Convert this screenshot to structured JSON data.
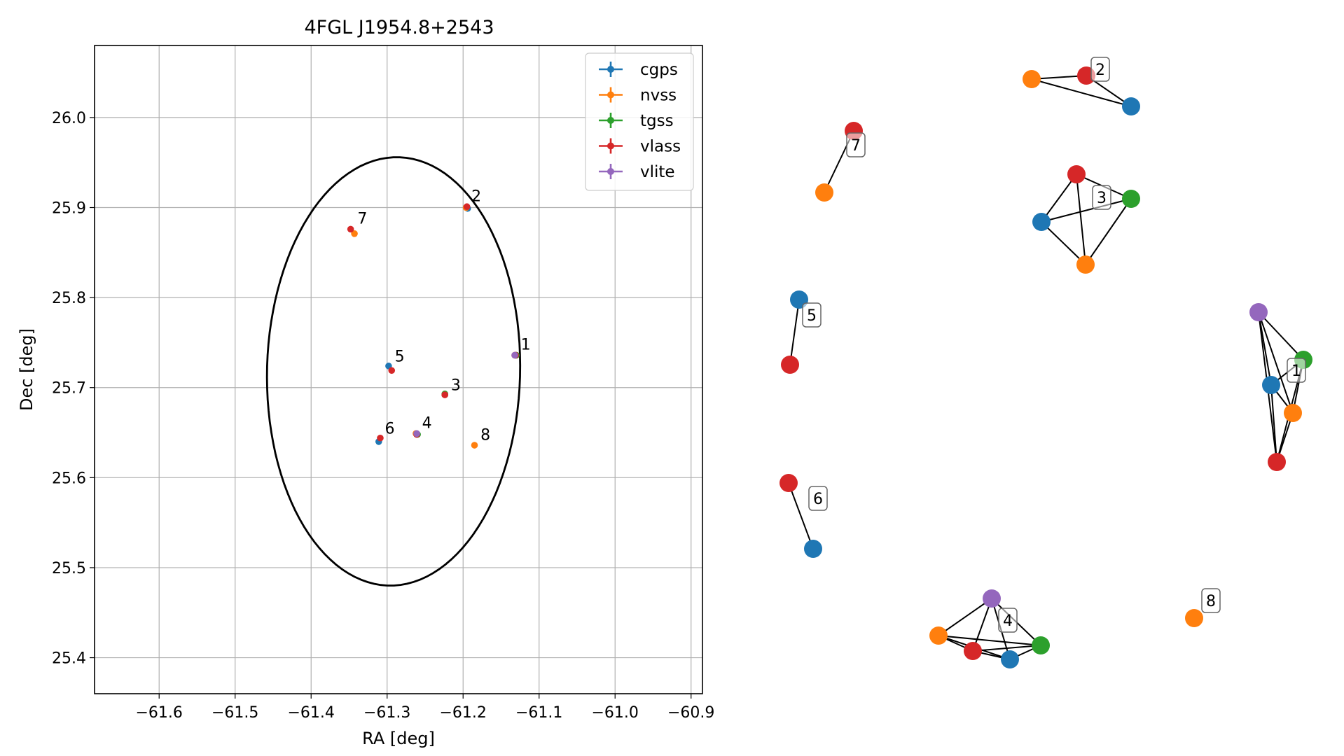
{
  "chart_data": [
    {
      "type": "scatter",
      "title": "4FGL J1954.8+2543",
      "xlabel": "RA [deg]",
      "ylabel": "Dec [deg]",
      "xlim": [
        -61.685,
        -60.885
      ],
      "ylim": [
        25.36,
        26.08
      ],
      "xticks": [
        -61.6,
        -61.5,
        -61.4,
        -61.3,
        -61.2,
        -61.1,
        -61.0,
        -60.9
      ],
      "xtick_labels": [
        "−61.6",
        "−61.5",
        "−61.4",
        "−61.3",
        "−61.2",
        "−61.1",
        "−61.0",
        "−60.9"
      ],
      "yticks": [
        25.4,
        25.5,
        25.6,
        25.7,
        25.8,
        25.9,
        26.0
      ],
      "ytick_labels": [
        "25.4",
        "25.5",
        "25.6",
        "25.7",
        "25.8",
        "25.9",
        "26.0"
      ],
      "grid": true,
      "legend_position": "top-right",
      "ellipse": {
        "center": [
          -61.2915,
          25.718
        ],
        "semi_axis_ra": 0.1665,
        "semi_axis_dec": 0.238,
        "angle_deg": -2
      },
      "series": [
        {
          "name": "cgps",
          "color": "#1f77b4",
          "points": [
            [
              -61.131,
              25.736
            ],
            [
              -61.194,
              25.899
            ],
            [
              -61.224,
              25.692
            ],
            [
              -61.261,
              25.648
            ],
            [
              -61.298,
              25.724
            ],
            [
              -61.311,
              25.64
            ]
          ]
        },
        {
          "name": "nvss",
          "color": "#ff7f0e",
          "points": [
            [
              -61.132,
              25.736
            ],
            [
              -61.196,
              25.9
            ],
            [
              -61.224,
              25.692
            ],
            [
              -61.262,
              25.649
            ],
            [
              -61.343,
              25.871
            ],
            [
              -61.185,
              25.636
            ]
          ]
        },
        {
          "name": "tgss",
          "color": "#2ca02c",
          "points": [
            [
              -61.13,
              25.736
            ],
            [
              -61.224,
              25.693
            ],
            [
              -61.26,
              25.648
            ]
          ]
        },
        {
          "name": "vlass",
          "color": "#d62728",
          "points": [
            [
              -61.131,
              25.736
            ],
            [
              -61.195,
              25.901
            ],
            [
              -61.224,
              25.692
            ],
            [
              -61.261,
              25.648
            ],
            [
              -61.294,
              25.719
            ],
            [
              -61.309,
              25.644
            ],
            [
              -61.348,
              25.876
            ]
          ]
        },
        {
          "name": "vlite",
          "color": "#9467bd",
          "points": [
            [
              -61.132,
              25.736
            ],
            [
              -61.261,
              25.649
            ]
          ]
        }
      ],
      "group_labels": [
        {
          "text": "1",
          "at": [
            -61.124,
            25.742
          ]
        },
        {
          "text": "2",
          "at": [
            -61.189,
            25.907
          ]
        },
        {
          "text": "3",
          "at": [
            -61.216,
            25.697
          ]
        },
        {
          "text": "4",
          "at": [
            -61.254,
            25.655
          ]
        },
        {
          "text": "5",
          "at": [
            -61.29,
            25.729
          ]
        },
        {
          "text": "6",
          "at": [
            -61.303,
            25.649
          ]
        },
        {
          "text": "7",
          "at": [
            -61.339,
            25.882
          ]
        },
        {
          "text": "8",
          "at": [
            -61.177,
            25.642
          ]
        }
      ]
    },
    {
      "type": "network",
      "colors": {
        "cgps": "#1f77b4",
        "nvss": "#ff7f0e",
        "tgss": "#2ca02c",
        "vlass": "#d62728",
        "vlite": "#9467bd"
      },
      "groups": [
        {
          "label": "1",
          "nodes": [
            {
              "id": "a",
              "survey": "vlite"
            },
            {
              "id": "b",
              "survey": "tgss"
            },
            {
              "id": "c",
              "survey": "cgps"
            },
            {
              "id": "d",
              "survey": "nvss"
            },
            {
              "id": "e",
              "survey": "vlass"
            }
          ],
          "edges": [
            [
              "a",
              "b"
            ],
            [
              "a",
              "c"
            ],
            [
              "a",
              "d"
            ],
            [
              "a",
              "e"
            ],
            [
              "b",
              "c"
            ],
            [
              "b",
              "d"
            ],
            [
              "b",
              "e"
            ],
            [
              "c",
              "d"
            ],
            [
              "c",
              "e"
            ],
            [
              "d",
              "e"
            ]
          ]
        },
        {
          "label": "2",
          "nodes": [
            {
              "id": "a",
              "survey": "nvss"
            },
            {
              "id": "b",
              "survey": "vlass"
            },
            {
              "id": "c",
              "survey": "cgps"
            }
          ],
          "edges": [
            [
              "a",
              "b"
            ],
            [
              "a",
              "c"
            ],
            [
              "b",
              "c"
            ]
          ]
        },
        {
          "label": "3",
          "nodes": [
            {
              "id": "a",
              "survey": "vlass"
            },
            {
              "id": "b",
              "survey": "tgss"
            },
            {
              "id": "c",
              "survey": "cgps"
            },
            {
              "id": "d",
              "survey": "nvss"
            }
          ],
          "edges": [
            [
              "a",
              "b"
            ],
            [
              "a",
              "c"
            ],
            [
              "a",
              "d"
            ],
            [
              "b",
              "c"
            ],
            [
              "b",
              "d"
            ],
            [
              "c",
              "d"
            ]
          ]
        },
        {
          "label": "4",
          "nodes": [
            {
              "id": "a",
              "survey": "vlite"
            },
            {
              "id": "b",
              "survey": "nvss"
            },
            {
              "id": "c",
              "survey": "vlass"
            },
            {
              "id": "d",
              "survey": "cgps"
            },
            {
              "id": "e",
              "survey": "tgss"
            }
          ],
          "edges": [
            [
              "a",
              "b"
            ],
            [
              "a",
              "c"
            ],
            [
              "a",
              "d"
            ],
            [
              "a",
              "e"
            ],
            [
              "b",
              "c"
            ],
            [
              "b",
              "d"
            ],
            [
              "b",
              "e"
            ],
            [
              "c",
              "d"
            ],
            [
              "c",
              "e"
            ],
            [
              "d",
              "e"
            ]
          ]
        },
        {
          "label": "5",
          "nodes": [
            {
              "id": "a",
              "survey": "cgps"
            },
            {
              "id": "b",
              "survey": "vlass"
            }
          ],
          "edges": [
            [
              "a",
              "b"
            ]
          ]
        },
        {
          "label": "6",
          "nodes": [
            {
              "id": "a",
              "survey": "vlass"
            },
            {
              "id": "b",
              "survey": "cgps"
            }
          ],
          "edges": [
            [
              "a",
              "b"
            ]
          ]
        },
        {
          "label": "7",
          "nodes": [
            {
              "id": "a",
              "survey": "vlass"
            },
            {
              "id": "b",
              "survey": "nvss"
            }
          ],
          "edges": [
            [
              "a",
              "b"
            ]
          ]
        },
        {
          "label": "8",
          "nodes": [
            {
              "id": "a",
              "survey": "nvss"
            }
          ],
          "edges": []
        }
      ]
    }
  ]
}
